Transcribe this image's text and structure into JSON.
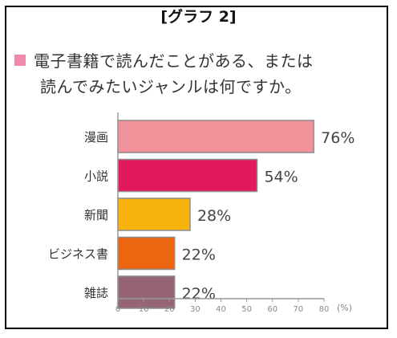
{
  "title": "[グラフ 2]",
  "question": {
    "line1": "電子書籍で読んだことがある、または",
    "line2": "読んでみたいジャンルは何ですか。"
  },
  "chart_data": {
    "type": "bar",
    "orientation": "horizontal",
    "categories": [
      "漫画",
      "小説",
      "新聞",
      "ビジネス書",
      "雑誌"
    ],
    "values": [
      76,
      54,
      28,
      22,
      22
    ],
    "value_labels": [
      "76%",
      "54%",
      "28%",
      "22%",
      "22%"
    ],
    "colors": [
      "#f1919a",
      "#e2195c",
      "#f7b20c",
      "#ec6510",
      "#956476"
    ],
    "xlim": [
      0,
      80
    ],
    "xticks": [
      0,
      10,
      20,
      30,
      40,
      50,
      60,
      70,
      80
    ],
    "x_unit_label": "(%)",
    "grid": false,
    "legend": "none"
  }
}
